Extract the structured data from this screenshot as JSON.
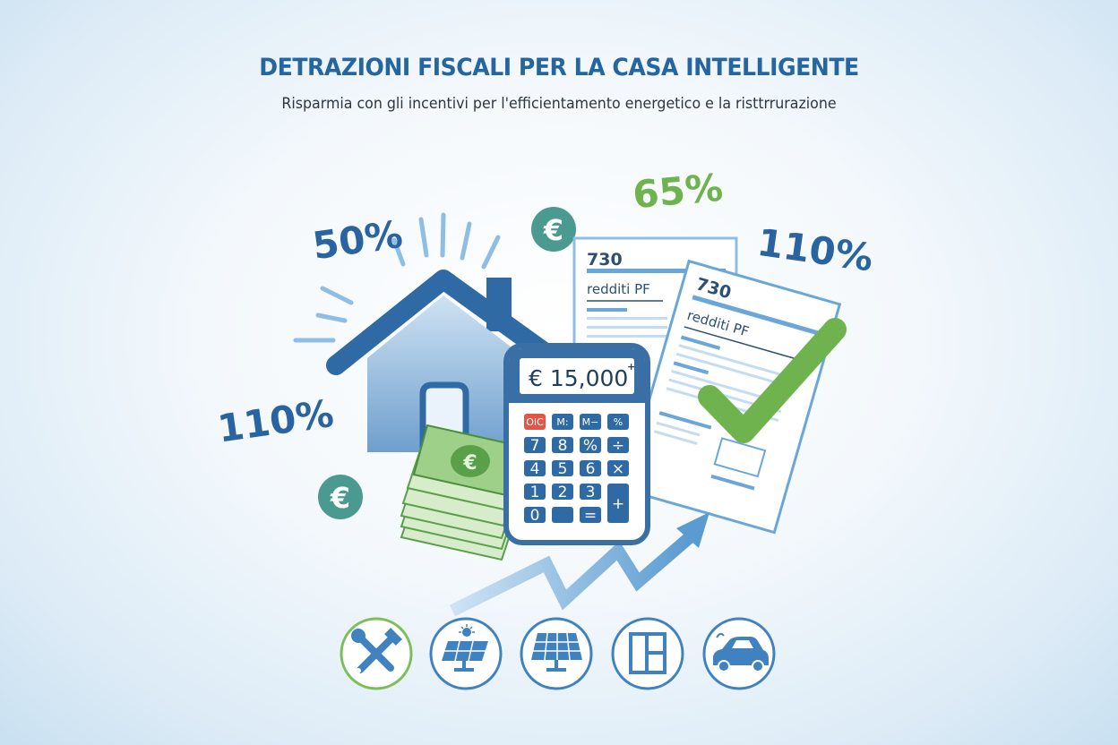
{
  "header": {
    "title": "DETRAZIONI FISCALI PER LA CASA INTELLIGENTE",
    "subtitle": "Risparmia con gli incentivi per l'efficientamento energetico e la risttrrurazione"
  },
  "percentages": {
    "top_left": "50%",
    "top_center": "65%",
    "top_right": "110%",
    "left": "110%"
  },
  "currency_symbol": "€",
  "documents": {
    "back": {
      "code": "730",
      "label": "redditi PF"
    },
    "front": {
      "code": "730",
      "label": "redditi PF"
    }
  },
  "calculator": {
    "display": "€ 15,000",
    "display_mark": "+",
    "keys": [
      "OIC",
      "M:",
      "M−",
      "%",
      "7",
      "8",
      "%",
      "÷",
      "4",
      "5",
      "6",
      "×",
      "1",
      "2",
      "3",
      "+",
      "0",
      "",
      "="
    ]
  },
  "bottom_icons": [
    "tools-icon",
    "solar-panel-sun-icon",
    "solar-panel-icon",
    "window-icon",
    "electric-car-icon"
  ],
  "colors": {
    "primary_blue": "#2565a0",
    "light_blue": "#8fb8dd",
    "green": "#6fb34f",
    "teal": "#4a9a90",
    "key_red": "#e0574a"
  }
}
